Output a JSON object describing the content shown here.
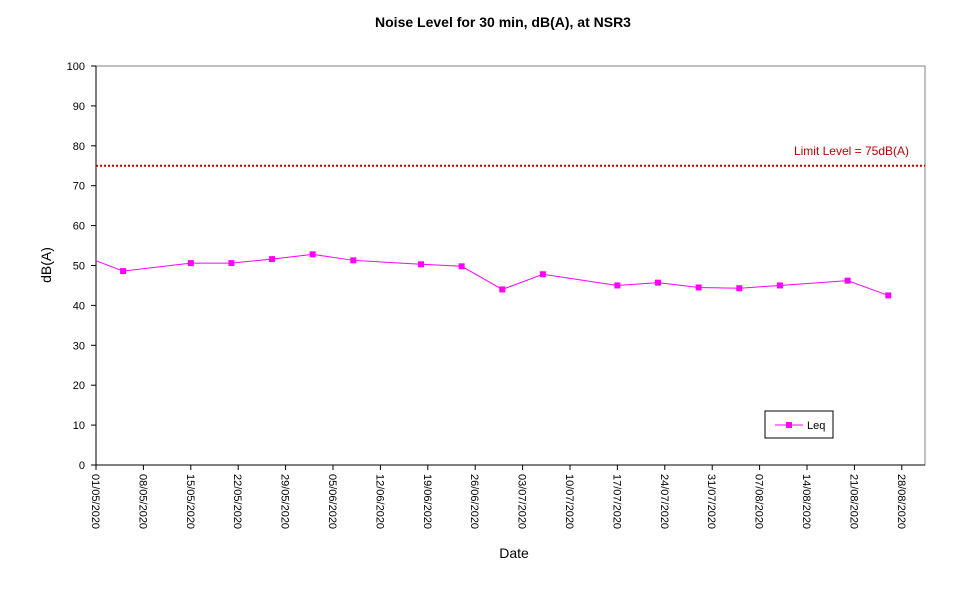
{
  "chart_data": {
    "type": "line",
    "title": "Noise Level for 30 min, dB(A), at NSR3",
    "xlabel": "Date",
    "ylabel": "dB(A)",
    "ylim": [
      0,
      100
    ],
    "yticks": [
      0,
      10,
      20,
      30,
      40,
      50,
      60,
      70,
      80,
      90,
      100
    ],
    "xlim": [
      "2020-05-01",
      "2020-08-28"
    ],
    "xtick_labels": [
      "01/05/2020",
      "08/05/2020",
      "15/05/2020",
      "22/05/2020",
      "29/05/2020",
      "05/06/2020",
      "12/06/2020",
      "19/06/2020",
      "26/06/2020",
      "03/07/2020",
      "10/07/2020",
      "17/07/2020",
      "24/07/2020",
      "31/07/2020",
      "07/08/2020",
      "14/08/2020",
      "21/08/2020",
      "28/08/2020"
    ],
    "grid": false,
    "limit_line": {
      "value": 75,
      "label": "Limit Level  = 75dB(A)",
      "color": "#c00000",
      "style": "dotted"
    },
    "series": [
      {
        "name": "Leq",
        "color": "#ff00ff",
        "marker": "square",
        "points": [
          {
            "x": "2020-05-01",
            "y": 51.2,
            "marker": false
          },
          {
            "x": "2020-05-05",
            "y": 48.6
          },
          {
            "x": "2020-05-15",
            "y": 50.6
          },
          {
            "x": "2020-05-21",
            "y": 50.6
          },
          {
            "x": "2020-05-27",
            "y": 51.6
          },
          {
            "x": "2020-06-02",
            "y": 52.8
          },
          {
            "x": "2020-06-08",
            "y": 51.3
          },
          {
            "x": "2020-06-18",
            "y": 50.3
          },
          {
            "x": "2020-06-24",
            "y": 49.8
          },
          {
            "x": "2020-06-30",
            "y": 44.0
          },
          {
            "x": "2020-07-06",
            "y": 47.8
          },
          {
            "x": "2020-07-17",
            "y": 45.0
          },
          {
            "x": "2020-07-23",
            "y": 45.7
          },
          {
            "x": "2020-07-29",
            "y": 44.5
          },
          {
            "x": "2020-08-04",
            "y": 44.3
          },
          {
            "x": "2020-08-10",
            "y": 45.0
          },
          {
            "x": "2020-08-20",
            "y": 46.2
          },
          {
            "x": "2020-08-26",
            "y": 42.5
          }
        ]
      }
    ],
    "legend_placement": "bottom-right"
  }
}
